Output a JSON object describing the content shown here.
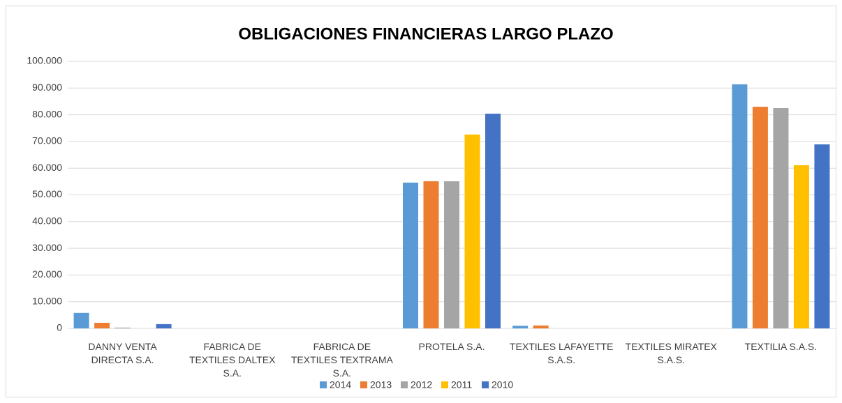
{
  "chart_data": {
    "type": "bar",
    "title": "OBLIGACIONES FINANCIERAS LARGO PLAZO",
    "categories": [
      "DANNY VENTA DIRECTA S.A.",
      "FABRICA DE TEXTILES DALTEX S.A.",
      "FABRICA DE TEXTILES TEXTRAMA S.A.",
      "PROTELA S.A.",
      "TEXTILES LAFAYETTE S.A.S.",
      "TEXTILES MIRATEX S.A.S.",
      "TEXTILIA S.A.S."
    ],
    "series": [
      {
        "name": "2014",
        "color": "#5b9bd5",
        "values": [
          5800,
          0,
          0,
          54600,
          1000,
          0,
          91400
        ]
      },
      {
        "name": "2013",
        "color": "#ed7d31",
        "values": [
          2100,
          0,
          0,
          55100,
          1100,
          0,
          83000
        ]
      },
      {
        "name": "2012",
        "color": "#a5a5a5",
        "values": [
          300,
          0,
          0,
          55100,
          0,
          0,
          82500
        ]
      },
      {
        "name": "2011",
        "color": "#ffc000",
        "values": [
          0,
          0,
          0,
          72600,
          0,
          0,
          61100
        ]
      },
      {
        "name": "2010",
        "color": "#4472c4",
        "values": [
          1600,
          0,
          0,
          80400,
          0,
          0,
          68900
        ]
      }
    ],
    "ylim": [
      0,
      100000
    ],
    "yticks": [
      0,
      {
        "value": 10000,
        "label": "10.000"
      },
      {
        "value": 20000,
        "label": "20.000"
      },
      {
        "value": 30000,
        "label": "30.000"
      },
      {
        "value": 40000,
        "label": "40.000"
      },
      {
        "value": 50000,
        "label": "50.000"
      },
      {
        "value": 60000,
        "label": "60.000"
      },
      {
        "value": 70000,
        "label": "70.000"
      },
      {
        "value": 80000,
        "label": "80.000"
      },
      {
        "value": 90000,
        "label": "90.000"
      },
      {
        "value": 100000,
        "label": "100.000"
      }
    ],
    "grid": true,
    "legend": "bottom"
  }
}
